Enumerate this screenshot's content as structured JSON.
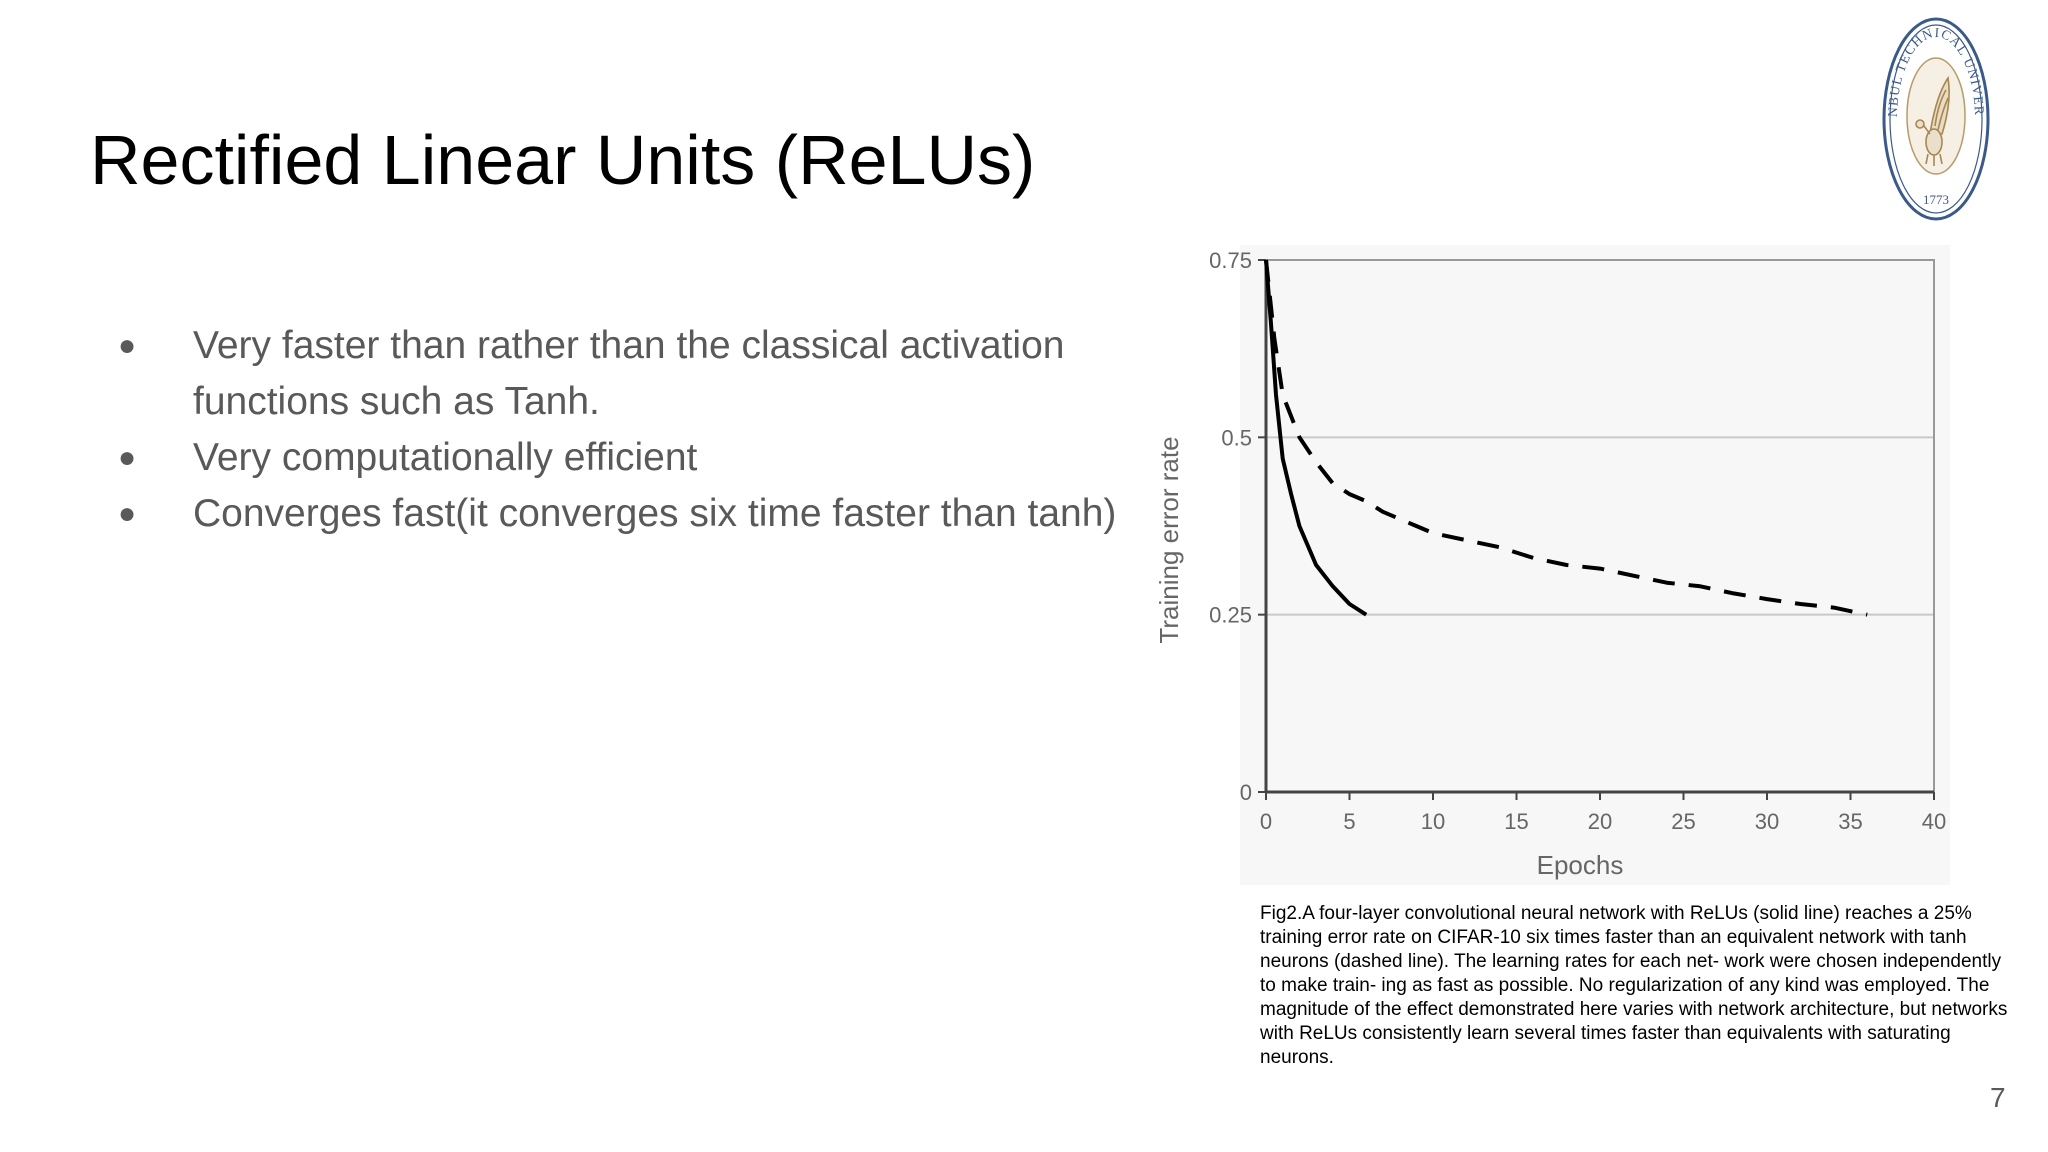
{
  "slide": {
    "title": "Rectified Linear Units (ReLUs)",
    "bullets": [
      {
        "marker": "●",
        "text": "Very faster than rather than the classical activation functions such as Tanh."
      },
      {
        "marker": "●",
        "text": "Very computationally efficient"
      },
      {
        "marker": "●",
        "text": "Converges fast(it converges six time faster than tanh)"
      }
    ],
    "caption": "Fig2.A four-layer convolutional neural network with ReLUs (solid line) reaches a 25% training error rate on CIFAR-10 six times faster than an equivalent network with tanh neurons (dashed line). The learning rates for each net- work were chosen independently to make train- ing as fast as possible. No regularization of any kind was employed. The magnitude of the effect demonstrated here varies with network architecture, but networks with ReLUs consistently learn several times faster than equivalents with saturating neurons.",
    "page_number": "7"
  },
  "logo": {
    "text": "ISTANBUL TECHNICAL UNIVERSITY",
    "year": "1773",
    "color": "#3b5a8a"
  },
  "chart_data": {
    "type": "line",
    "title": "",
    "xlabel": "Epochs",
    "ylabel": "Training error rate",
    "xlim": [
      0,
      40
    ],
    "ylim": [
      0,
      0.75
    ],
    "x_ticks": [
      "0",
      "5",
      "10",
      "15",
      "20",
      "25",
      "30",
      "35",
      "40"
    ],
    "y_ticks": [
      "0",
      "0.25",
      "0.5",
      "0.75"
    ],
    "grid": {
      "horizontal": true,
      "vertical": false
    },
    "series": [
      {
        "style": "solid",
        "color": "#000000",
        "x": [
          0,
          0.3,
          0.6,
          1,
          1.5,
          2,
          3,
          4,
          5,
          6
        ],
        "y": [
          0.75,
          0.66,
          0.56,
          0.47,
          0.42,
          0.375,
          0.32,
          0.29,
          0.265,
          0.25
        ]
      },
      {
        "style": "dashed",
        "color": "#000000",
        "x": [
          0,
          0.5,
          1,
          2,
          3,
          4,
          5,
          6,
          7,
          8,
          9,
          10,
          12,
          14,
          16,
          18,
          20,
          22,
          24,
          26,
          28,
          30,
          32,
          34,
          36
        ],
        "y": [
          0.75,
          0.64,
          0.56,
          0.5,
          0.465,
          0.435,
          0.42,
          0.41,
          0.395,
          0.385,
          0.375,
          0.365,
          0.355,
          0.345,
          0.33,
          0.32,
          0.315,
          0.305,
          0.295,
          0.29,
          0.28,
          0.272,
          0.265,
          0.26,
          0.25
        ]
      }
    ],
    "colors": {
      "axis": "#444444",
      "grid": "#c8c8c8",
      "frame": "#999999",
      "tick_label": "#666666"
    }
  }
}
